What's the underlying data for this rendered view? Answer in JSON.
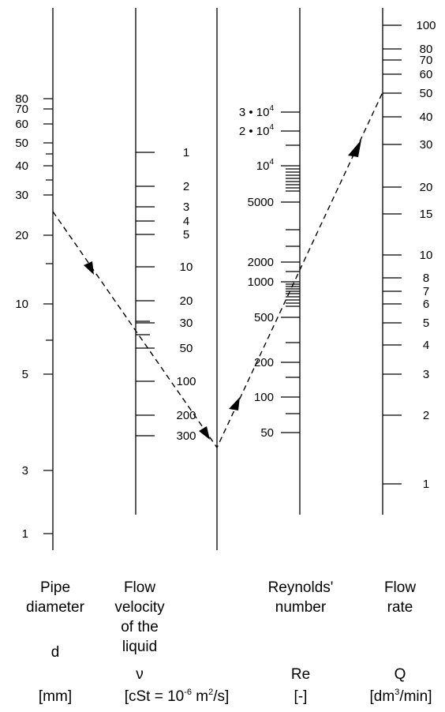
{
  "axes": {
    "pipe_diameter": {
      "ticks": [
        {
          "label": "80",
          "major": true
        },
        {
          "label": "70",
          "major": true
        },
        {
          "label": "60",
          "major": true
        },
        {
          "label": "50",
          "major": true
        },
        {
          "label": "",
          "major": false
        },
        {
          "label": "40",
          "major": true
        },
        {
          "label": "",
          "major": false
        },
        {
          "label": "30",
          "major": true
        },
        {
          "label": "20",
          "major": true
        },
        {
          "label": "",
          "major": false
        },
        {
          "label": "10",
          "major": true
        },
        {
          "label": "",
          "major": false
        },
        {
          "label": "5",
          "major": true
        },
        {
          "label": "3",
          "major": true
        },
        {
          "label": "1",
          "major": true
        }
      ]
    },
    "viscosity": {
      "ticks": [
        {
          "label": "1",
          "major": true
        },
        {
          "label": "2",
          "major": true
        },
        {
          "label": "3",
          "major": true
        },
        {
          "label": "4",
          "major": true
        },
        {
          "label": "5",
          "major": true
        },
        {
          "label": "10",
          "major": true
        },
        {
          "label": "20",
          "major": true
        },
        {
          "label": "",
          "major": false
        },
        {
          "label": "30",
          "major": true
        },
        {
          "label": "",
          "major": false
        },
        {
          "label": "50",
          "major": true
        },
        {
          "label": "100",
          "major": true
        },
        {
          "label": "200",
          "major": true
        },
        {
          "label": "300",
          "major": true
        }
      ]
    },
    "reynolds": {
      "ticks": [
        {
          "label": "3 • 10",
          "sup": "4",
          "major": true
        },
        {
          "label": "2 • 10",
          "sup": "4",
          "major": true
        },
        {
          "label": "",
          "major": false
        },
        {
          "label": "10",
          "sup": "4",
          "major": true
        },
        {
          "label": "",
          "major": false
        },
        {
          "label": "",
          "major": false
        },
        {
          "label": "",
          "major": false
        },
        {
          "label": "",
          "major": false
        },
        {
          "label": "",
          "major": false
        },
        {
          "label": "",
          "major": false
        },
        {
          "label": "",
          "major": false
        },
        {
          "label": "",
          "major": false
        },
        {
          "label": "5000",
          "major": true
        },
        {
          "label": "",
          "major": false
        },
        {
          "label": "",
          "major": false
        },
        {
          "label": "2000",
          "major": true
        },
        {
          "label": "",
          "major": false
        },
        {
          "label": "1000",
          "major": true
        },
        {
          "label": "",
          "major": false
        },
        {
          "label": "",
          "major": false
        },
        {
          "label": "",
          "major": false
        },
        {
          "label": "",
          "major": false
        },
        {
          "label": "",
          "major": false
        },
        {
          "label": "",
          "major": false
        },
        {
          "label": "",
          "major": false
        },
        {
          "label": "",
          "major": false
        },
        {
          "label": "",
          "major": false
        },
        {
          "label": "500",
          "major": true
        },
        {
          "label": "",
          "major": false
        },
        {
          "label": "200",
          "major": true
        },
        {
          "label": "",
          "major": false
        },
        {
          "label": "100",
          "major": true
        },
        {
          "label": "",
          "major": false
        },
        {
          "label": "50",
          "major": true
        }
      ]
    },
    "flow_rate": {
      "ticks": [
        {
          "label": "100",
          "major": true
        },
        {
          "label": "80",
          "major": true
        },
        {
          "label": "70",
          "major": true
        },
        {
          "label": "60",
          "major": true
        },
        {
          "label": "50",
          "major": true
        },
        {
          "label": "40",
          "major": true
        },
        {
          "label": "30",
          "major": true
        },
        {
          "label": "20",
          "major": true
        },
        {
          "label": "15",
          "major": true
        },
        {
          "label": "10",
          "major": true
        },
        {
          "label": "8",
          "major": true
        },
        {
          "label": "7",
          "major": true
        },
        {
          "label": "6",
          "major": true
        },
        {
          "label": "5",
          "major": true
        },
        {
          "label": "4",
          "major": true
        },
        {
          "label": "3",
          "major": true
        },
        {
          "label": "2",
          "major": true
        },
        {
          "label": "1",
          "major": true
        }
      ]
    }
  },
  "footer": {
    "pipe": {
      "line1": "Pipe",
      "line2": "diameter",
      "symbol": "d",
      "unit": "[mm]"
    },
    "velocity": {
      "line1": "Flow",
      "line2": "velocity",
      "line3": "of the",
      "line4": "liquid",
      "symbol": "ν",
      "unit_pre": "[cSt = 10",
      "unit_exp1": "-6",
      "unit_mid": " m",
      "unit_exp2": "2",
      "unit_post": "/s]"
    },
    "reynolds": {
      "line1": "Reynolds'",
      "line2": "number",
      "symbol": "Re",
      "unit": "[-]"
    },
    "flow": {
      "line1": "Flow",
      "line2": "rate",
      "symbol": "Q",
      "unit_pre": "[dm",
      "unit_exp": "3",
      "unit_post": "/min]"
    }
  }
}
